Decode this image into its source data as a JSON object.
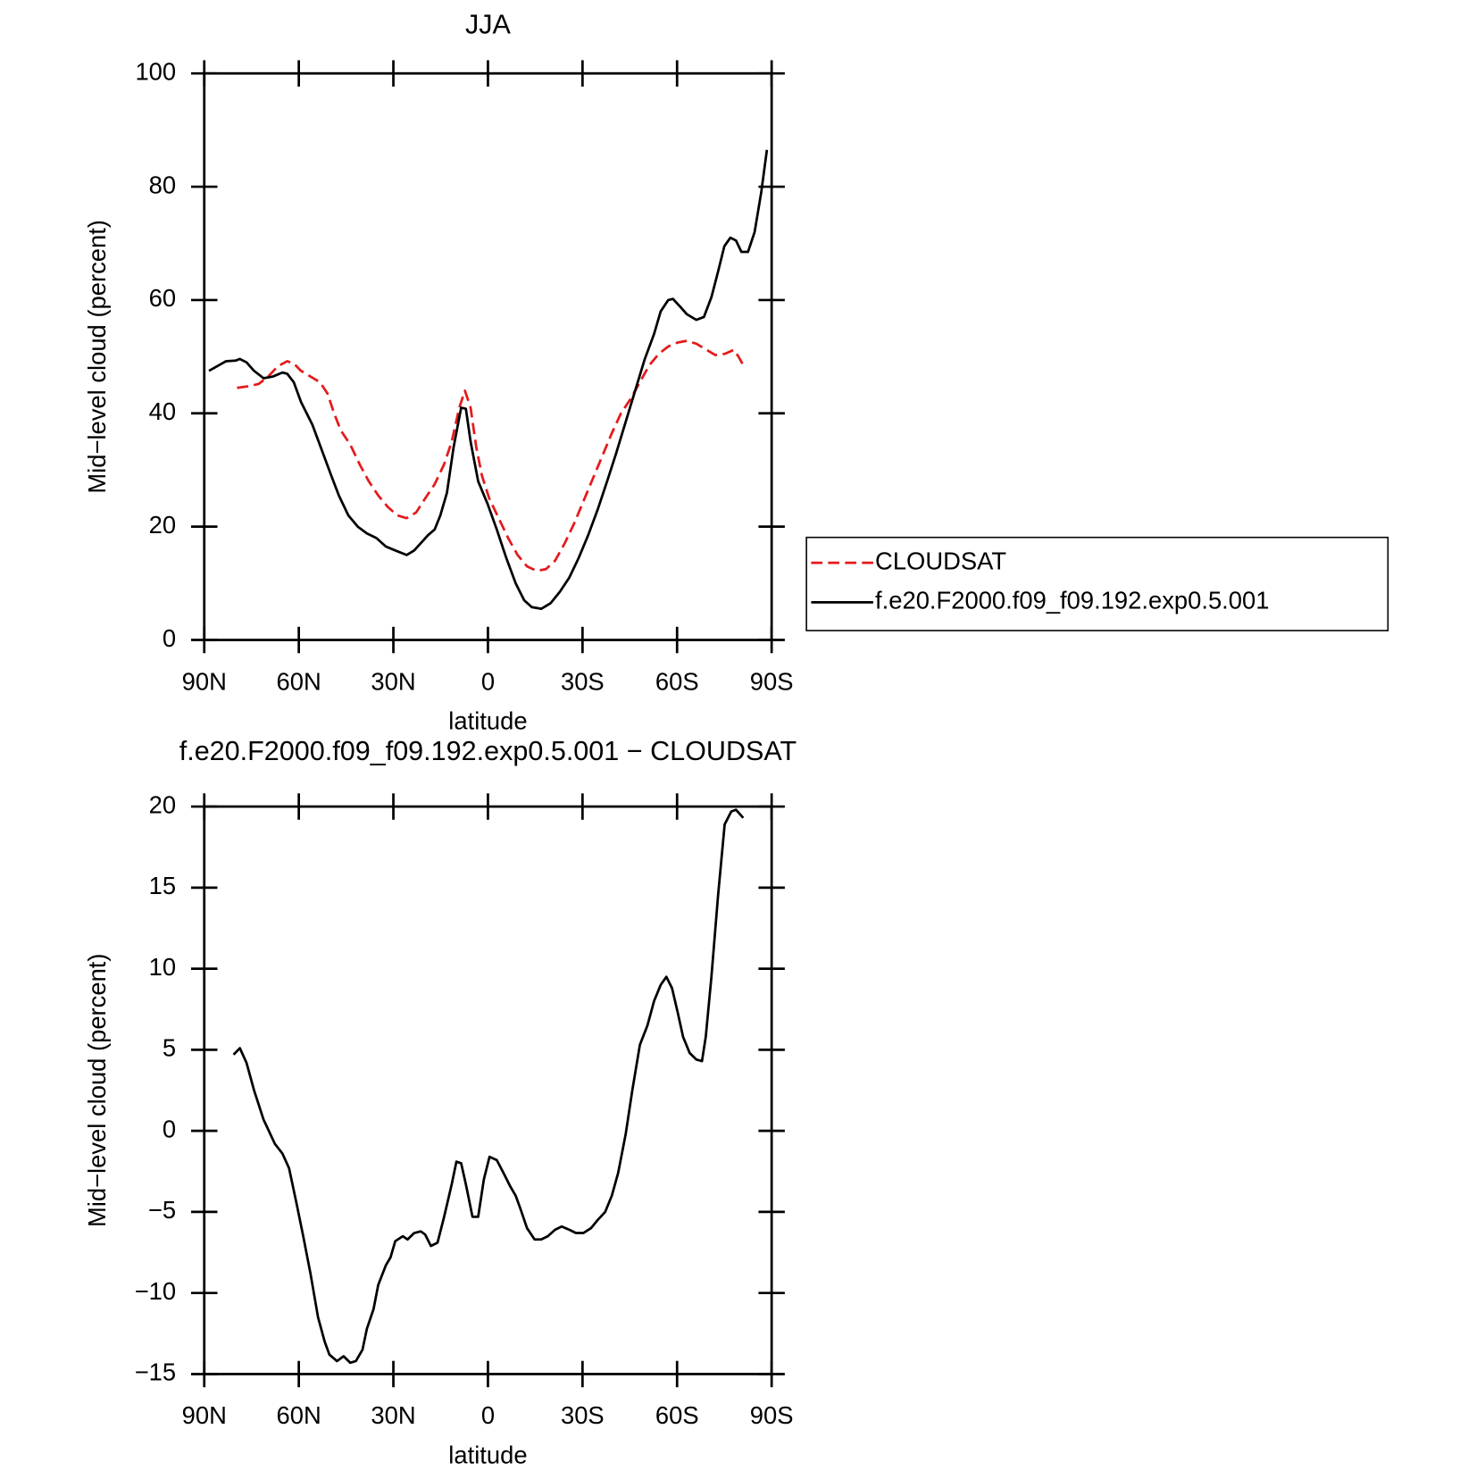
{
  "chart_data": [
    {
      "type": "line",
      "title": "JJA",
      "xlabel": "latitude",
      "ylabel": "Mid−level cloud (percent)",
      "xlim": [
        90,
        -90
      ],
      "xticks": [
        {
          "value": 90,
          "label": "90N"
        },
        {
          "value": 60,
          "label": "60N"
        },
        {
          "value": 30,
          "label": "30N"
        },
        0,
        {
          "value": -30,
          "label": "30S"
        },
        {
          "value": -60,
          "label": "60S"
        },
        {
          "value": -90,
          "label": "90S"
        }
      ],
      "ylim": [
        0,
        100
      ],
      "yticks": [
        0,
        20,
        40,
        60,
        80,
        100
      ],
      "legend": "right",
      "series": [
        {
          "name": "CLOUDSAT",
          "color": "#e41a1c",
          "dashed": true,
          "x": [
            79.6,
            75.7,
            72.7,
            69.7,
            66.7,
            63.7,
            61.6,
            59.3,
            56.3,
            53.3,
            50.9,
            48.8,
            46.7,
            43.7,
            40.7,
            37.8,
            34.8,
            31.8,
            28.8,
            25.8,
            22.8,
            19.9,
            16.9,
            13.9,
            11.5,
            9.1,
            7.3,
            5.5,
            3.7,
            1.9,
            -0.4,
            -3.4,
            -6.4,
            -9.4,
            -12.4,
            -15.4,
            -18.4,
            -21.3,
            -24.3,
            -27.3,
            -30.3,
            -33.3,
            -36.3,
            -39.3,
            -42.2,
            -45.2,
            -48.2,
            -51.2,
            -54.2,
            -57.2,
            -60.2,
            -63.1,
            -66.1,
            -69.1,
            -72.1,
            -75.1,
            -78,
            -79.5,
            -81
          ],
          "values": [
            44.5,
            44.8,
            45.2,
            46.5,
            48.3,
            49.2,
            48.8,
            47.5,
            46.5,
            45.5,
            43.5,
            40,
            37,
            34.5,
            31,
            28,
            25.5,
            23.5,
            22,
            21.5,
            22.5,
            25,
            27.5,
            31,
            35,
            41,
            44,
            41,
            34,
            29,
            25,
            21.5,
            18,
            15,
            13,
            12.2,
            12.5,
            14,
            17,
            20.5,
            24.5,
            28.5,
            32.5,
            36.5,
            40,
            42.5,
            45.5,
            48.5,
            50.5,
            51.8,
            52.5,
            52.8,
            52.3,
            51.3,
            50.3,
            50.5,
            51.2,
            50,
            48.5
          ]
        },
        {
          "name": "f.e20.F2000.f09_f09.192.exp0.5.001",
          "color": "#000000",
          "dashed": false,
          "x": [
            88.5,
            83.1,
            80.1,
            78.7,
            76.6,
            74.2,
            71.2,
            68.2,
            65.2,
            63.7,
            61.6,
            59.3,
            55.7,
            52.7,
            49.7,
            47.3,
            44.3,
            41.3,
            38.4,
            35.4,
            32.4,
            29.4,
            25.8,
            23.4,
            19.0,
            16.9,
            15.1,
            13.0,
            10.9,
            8.5,
            7.0,
            5.5,
            3.1,
            0.1,
            -2.8,
            -5.8,
            -8.8,
            -11.5,
            -13.9,
            -16.9,
            -19.9,
            -22.8,
            -25.8,
            -28.8,
            -31.8,
            -34.8,
            -37.8,
            -40.7,
            -43.7,
            -46.7,
            -49.7,
            -52.7,
            -54.8,
            -57.2,
            -58.7,
            -60.7,
            -63.1,
            -66.1,
            -68.5,
            -70.9,
            -73,
            -75,
            -76.9,
            -78.7,
            -80.4,
            -82.5,
            -84.6,
            -86.7,
            -88.5
          ],
          "values": [
            47.5,
            49.2,
            49.3,
            49.6,
            49,
            47.5,
            46.2,
            46.5,
            47.2,
            47,
            45.5,
            42,
            38,
            33.5,
            29,
            25.5,
            22,
            20,
            18.8,
            18,
            16.5,
            15.8,
            15,
            15.8,
            18.5,
            19.5,
            22,
            26,
            34,
            41,
            40.8,
            35,
            28,
            24,
            19.5,
            14.5,
            10,
            7,
            5.8,
            5.5,
            6.5,
            8.5,
            11,
            14.5,
            18.5,
            23,
            28,
            33,
            38.5,
            44,
            49.5,
            54,
            58,
            60,
            60.2,
            59,
            57.5,
            56.5,
            57,
            60.5,
            65,
            69.5,
            71,
            70.5,
            68.5,
            68.5,
            72,
            79,
            86.5
          ]
        }
      ]
    },
    {
      "type": "line",
      "title": "f.e20.F2000.f09_f09.192.exp0.5.001 − CLOUDSAT",
      "xlabel": "latitude",
      "ylabel": "Mid−level cloud (percent)",
      "xlim": [
        90,
        -90
      ],
      "xticks": [
        {
          "value": 90,
          "label": "90N"
        },
        {
          "value": 60,
          "label": "60N"
        },
        {
          "value": 30,
          "label": "30N"
        },
        0,
        {
          "value": -30,
          "label": "30S"
        },
        {
          "value": -60,
          "label": "60S"
        },
        {
          "value": -90,
          "label": "90S"
        }
      ],
      "ylim": [
        -15,
        20
      ],
      "yticks": [
        {
          "value": -15,
          "label": "−15"
        },
        {
          "value": -10,
          "label": "−10"
        },
        {
          "value": -5,
          "label": "−5"
        },
        0,
        5,
        10,
        15,
        20
      ],
      "series": [
        {
          "color": "#000000",
          "dashed": false,
          "x": [
            80.7,
            78.7,
            76.6,
            74.2,
            71.2,
            67.6,
            65.2,
            63.1,
            60.7,
            58.6,
            56.3,
            53.9,
            51.8,
            50.3,
            47.9,
            45.8,
            43.7,
            41.9,
            39.8,
            38.4,
            36.3,
            34.8,
            32.4,
            30.9,
            29.4,
            27.0,
            25.5,
            23.4,
            21.3,
            19.9,
            18.1,
            16.0,
            13.9,
            11.5,
            10.0,
            8.5,
            7.0,
            4.9,
            3.1,
            1.3,
            -0.5,
            -2.8,
            -5.2,
            -7.0,
            -8.8,
            -10.3,
            -12.4,
            -14.8,
            -16.9,
            -19.0,
            -21.3,
            -23.4,
            -25.8,
            -27.9,
            -30.3,
            -32.7,
            -34.8,
            -37.2,
            -39.3,
            -41.3,
            -43.7,
            -45.8,
            -48.2,
            -50.6,
            -52.7,
            -54.8,
            -56.6,
            -58.4,
            -60.2,
            -61.9,
            -64.0,
            -66.1,
            -67.9,
            -69.1,
            -70.9,
            -73.0,
            -75.1,
            -77.2,
            -78.7,
            -81.0
          ],
          "values": [
            4.7,
            5.1,
            4.2,
            2.5,
            0.7,
            -0.8,
            -1.4,
            -2.3,
            -4.5,
            -6.5,
            -8.8,
            -11.5,
            -13,
            -13.8,
            -14.2,
            -13.9,
            -14.3,
            -14.2,
            -13.5,
            -12.2,
            -11,
            -9.5,
            -8.3,
            -7.8,
            -6.8,
            -6.5,
            -6.7,
            -6.3,
            -6.2,
            -6.4,
            -7.1,
            -6.9,
            -5.3,
            -3.3,
            -1.9,
            -2,
            -3.3,
            -5.3,
            -5.3,
            -3,
            -1.6,
            -1.8,
            -2.7,
            -3.4,
            -4,
            -4.8,
            -6,
            -6.7,
            -6.7,
            -6.5,
            -6.1,
            -5.9,
            -6.1,
            -6.3,
            -6.3,
            -6,
            -5.5,
            -5,
            -4,
            -2.6,
            -0.2,
            2.5,
            5.3,
            6.5,
            8,
            9,
            9.5,
            8.8,
            7.3,
            5.8,
            4.8,
            4.4,
            4.3,
            5.8,
            9.5,
            14.5,
            18.9,
            19.7,
            19.8,
            19.3
          ]
        }
      ]
    }
  ]
}
